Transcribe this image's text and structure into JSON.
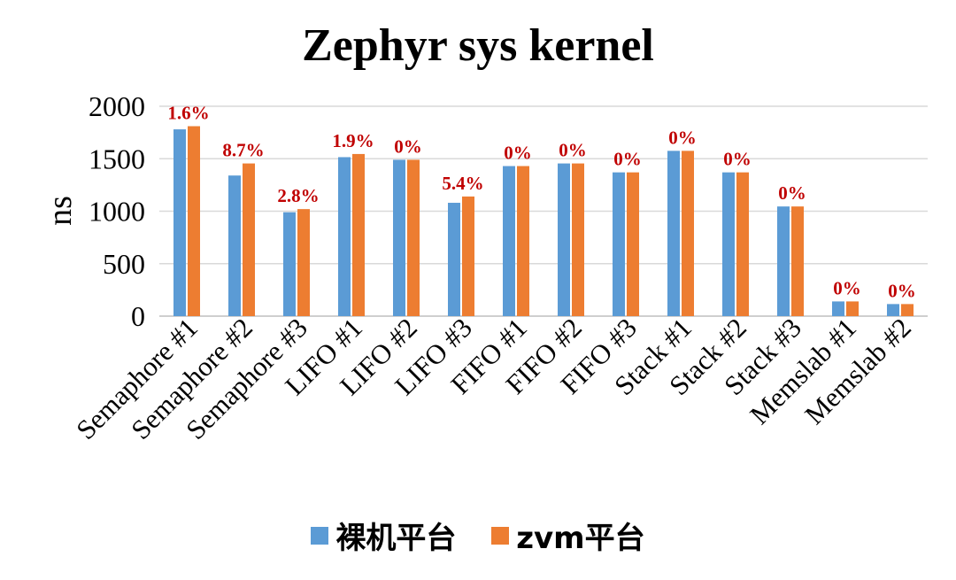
{
  "chart_data": {
    "type": "bar",
    "title": "Zephyr sys kernel",
    "xlabel": "",
    "ylabel": "ns",
    "ylim": [
      0,
      2000
    ],
    "yticks": [
      "0",
      "500",
      "1000",
      "1500",
      "2000"
    ],
    "grid": true,
    "legend_position": "bottom",
    "categories": [
      "Semaphore #1",
      "Semaphore #2",
      "Semaphore #3",
      "LIFO #1",
      "LIFO #2",
      "LIFO #3",
      "FIFO #1",
      "FIFO #2",
      "FIFO #3",
      "Stack #1",
      "Stack #2",
      "Stack #3",
      "Memslab #1",
      "Memslab #2"
    ],
    "series": [
      {
        "name": "裸机平台",
        "color": "#5b9bd5",
        "values": [
          1780,
          1340,
          990,
          1515,
          1490,
          1080,
          1430,
          1455,
          1370,
          1575,
          1370,
          1045,
          140,
          115
        ]
      },
      {
        "name": "zvm平台",
        "color": "#ed7d31",
        "values": [
          1810,
          1455,
          1020,
          1545,
          1490,
          1140,
          1430,
          1455,
          1370,
          1575,
          1370,
          1045,
          140,
          115
        ]
      }
    ],
    "annotations": [
      "1.6%",
      "8.7%",
      "2.8%",
      "1.9%",
      "0%",
      "5.4%",
      "0%",
      "0%",
      "0%",
      "0%",
      "0%",
      "0%",
      "0%",
      "0%"
    ],
    "annotation_color": "#c00000"
  }
}
